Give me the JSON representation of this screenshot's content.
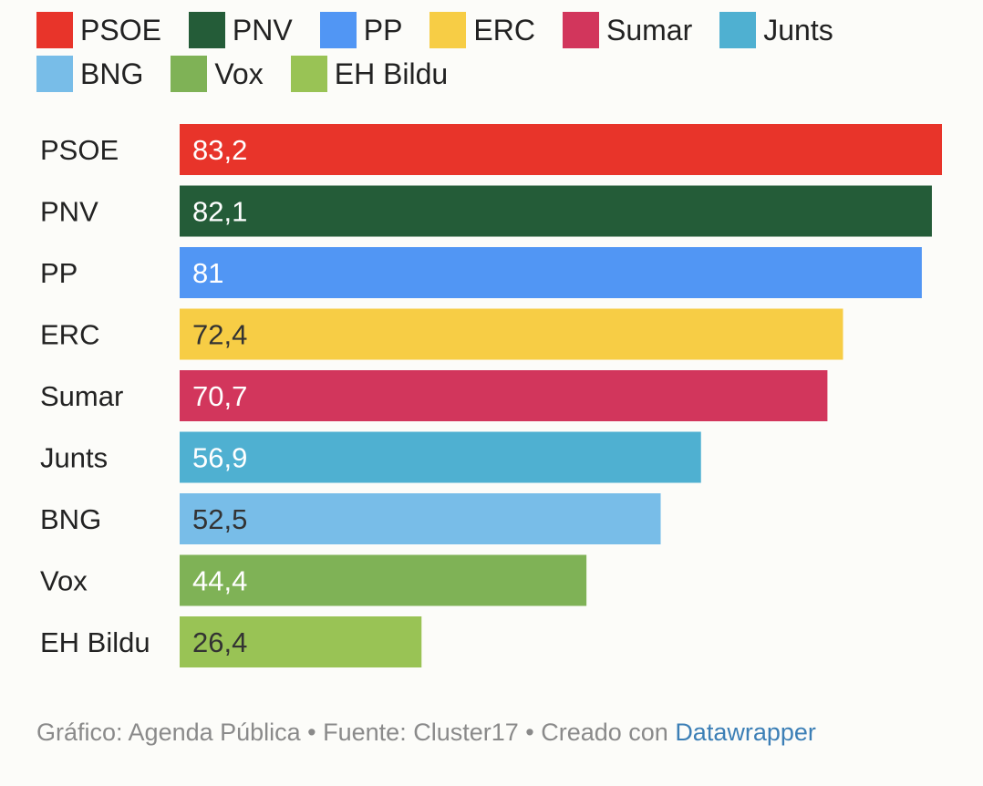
{
  "legend": {
    "row1": [
      {
        "label": "PSOE",
        "color": "#e8342a"
      },
      {
        "label": "PNV",
        "color": "#245c38"
      },
      {
        "label": "PP",
        "color": "#5196f4"
      },
      {
        "label": "ERC",
        "color": "#f7cd45"
      },
      {
        "label": "Sumar",
        "color": "#d2365c"
      },
      {
        "label": "Junts",
        "color": "#4fb0d1"
      }
    ],
    "row2": [
      {
        "label": "BNG",
        "color": "#78bde8"
      },
      {
        "label": "Vox",
        "color": "#7fb256"
      },
      {
        "label": "EH Bildu",
        "color": "#99c355"
      }
    ]
  },
  "chart_data": {
    "type": "bar",
    "orientation": "horizontal",
    "categories": [
      "PSOE",
      "PNV",
      "PP",
      "ERC",
      "Sumar",
      "Junts",
      "BNG",
      "Vox",
      "EH Bildu"
    ],
    "values": [
      83.2,
      82.1,
      81,
      72.4,
      70.7,
      56.9,
      52.5,
      44.4,
      26.4
    ],
    "value_labels": [
      "83,2",
      "82,1",
      "81",
      "72,4",
      "70,7",
      "56,9",
      "52,5",
      "44,4",
      "26,4"
    ],
    "colors": [
      "#e8342a",
      "#245c38",
      "#5196f4",
      "#f7cd45",
      "#d2365c",
      "#4fb0d1",
      "#78bde8",
      "#7fb256",
      "#99c355"
    ],
    "label_colors": [
      "#ffffff",
      "#ffffff",
      "#ffffff",
      "#333333",
      "#ffffff",
      "#ffffff",
      "#333333",
      "#ffffff",
      "#333333"
    ],
    "title": "",
    "xlabel": "",
    "ylabel": "",
    "xlim": [
      0,
      83.2
    ],
    "grid": false,
    "legend_position": "top"
  },
  "footer": {
    "text": "Gráfico: Agenda Pública • Fuente: Cluster17 • Creado con ",
    "link": "Datawrapper"
  }
}
